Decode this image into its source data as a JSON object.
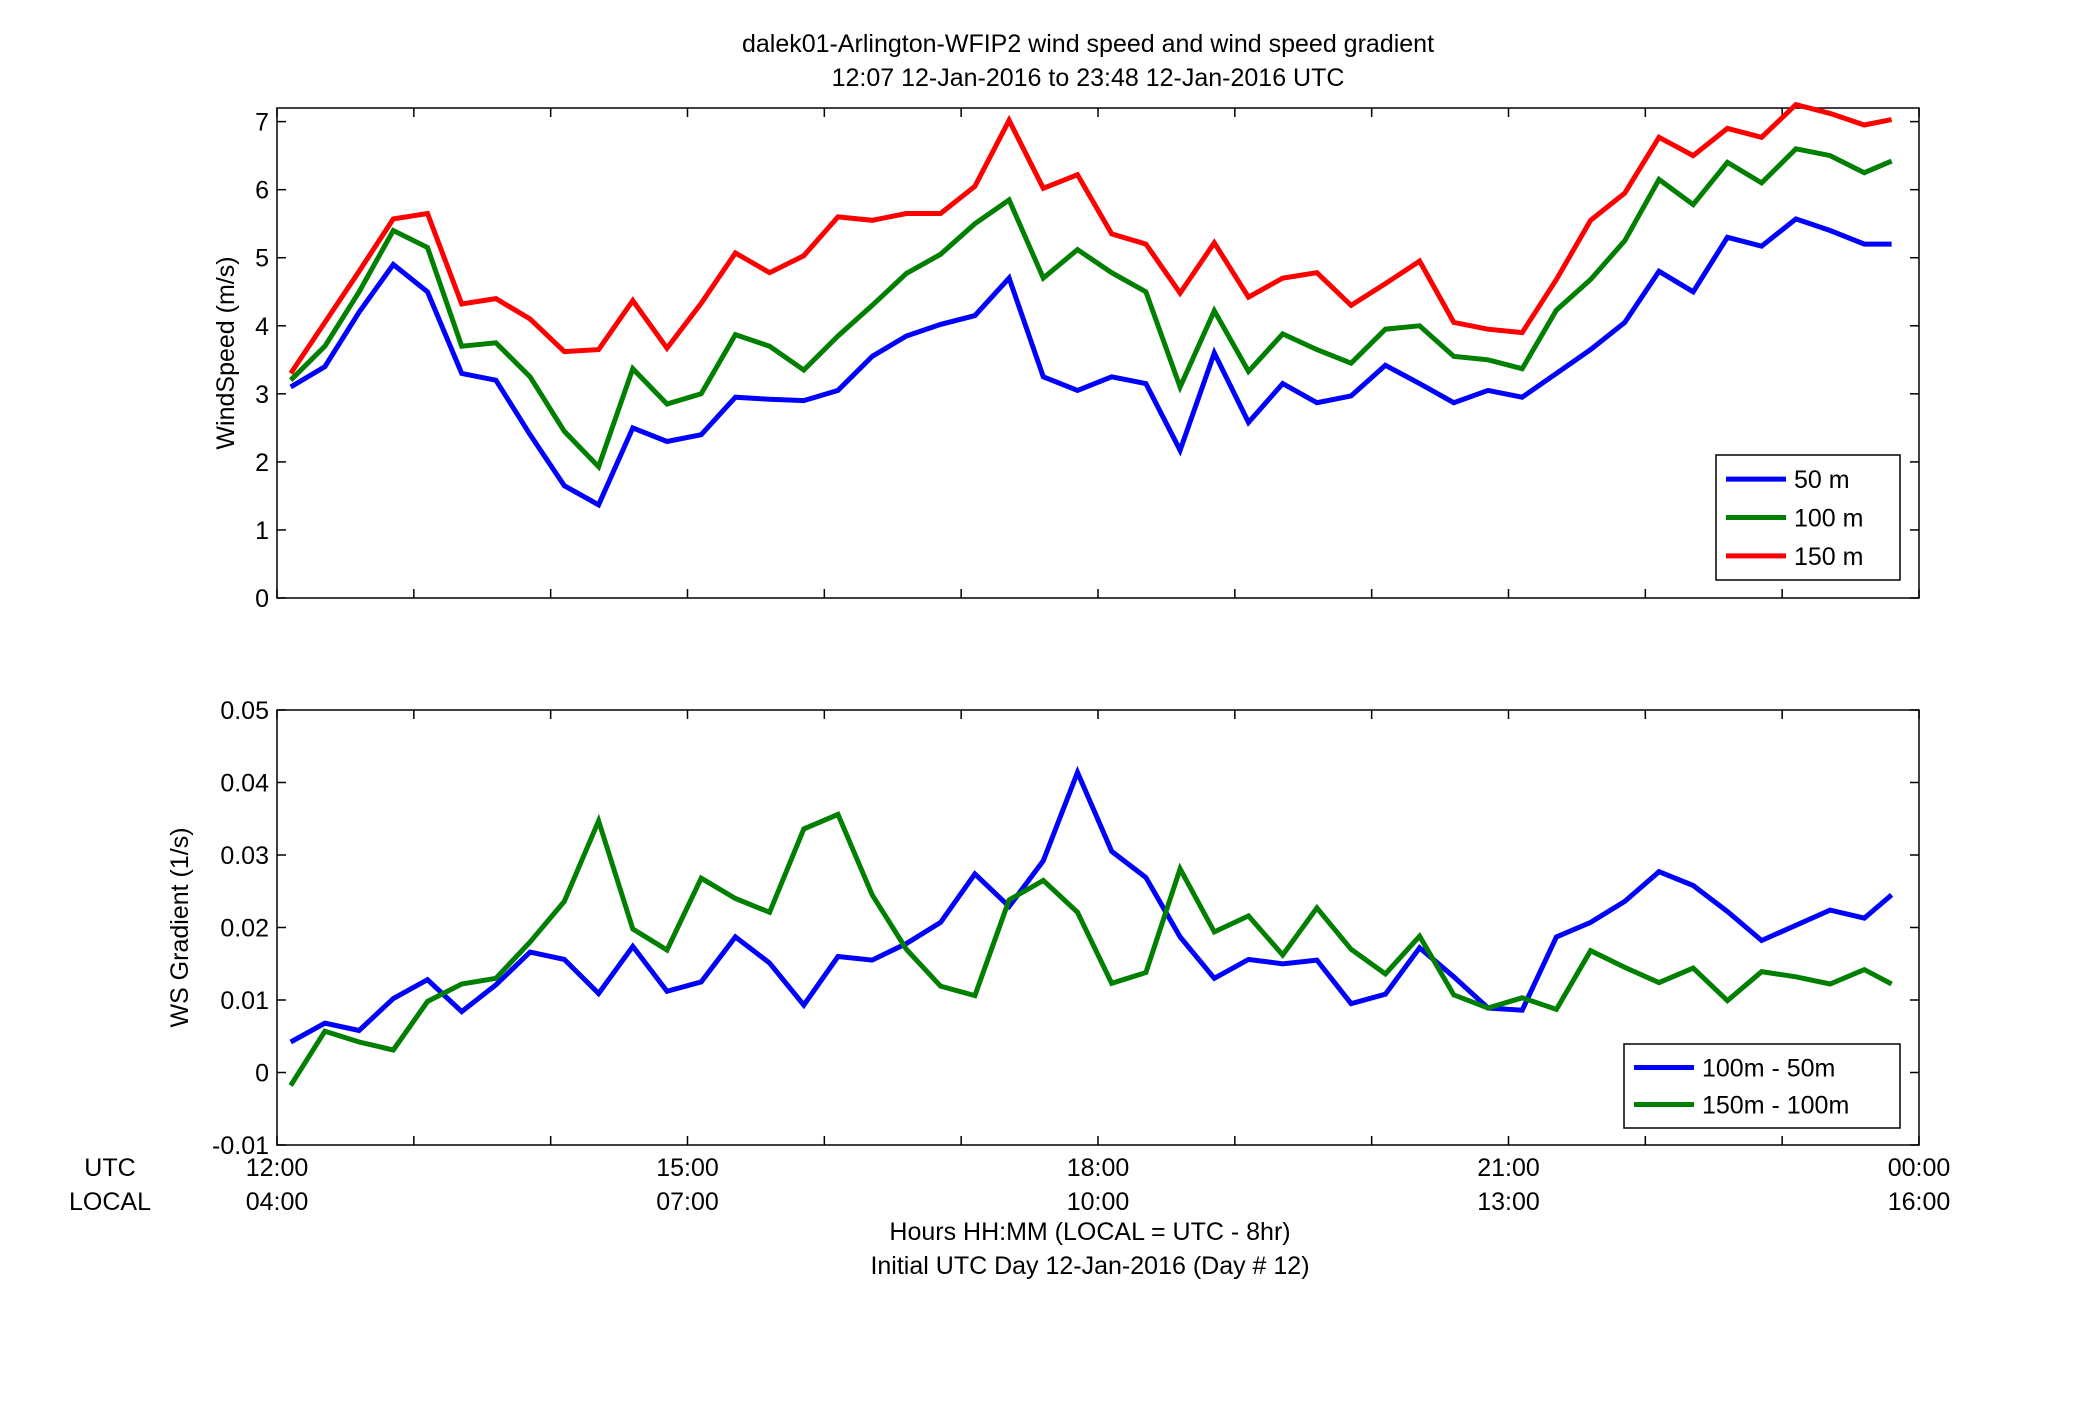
{
  "title_line1": "dalek01-Arlington-WFIP2  wind speed and wind speed gradient",
  "title_line2": "12:07 12-Jan-2016 to 23:48 12-Jan-2016  UTC",
  "bottom_label_utc": "UTC",
  "bottom_label_local": "LOCAL",
  "xlabel_line1": "Hours HH:MM  (LOCAL = UTC - 8hr)",
  "xlabel_line2": "Initial UTC Day 12-Jan-2016 (Day # 12)",
  "x_ticks_utc": [
    "12:00",
    "15:00",
    "18:00",
    "21:00",
    "00:00"
  ],
  "x_ticks_local": [
    "04:00",
    "07:00",
    "10:00",
    "13:00",
    "16:00"
  ],
  "colors": {
    "blue": "#0000ff",
    "green": "#007f00",
    "red": "#ff0000"
  },
  "chart_data": [
    {
      "type": "line",
      "ylabel": "WindSpeed (m/s)",
      "xlim": [
        12.0,
        24.0
      ],
      "ylim": [
        0,
        7.2
      ],
      "y_ticks": [
        0,
        1,
        2,
        3,
        4,
        5,
        6,
        7
      ],
      "x_hours": [
        12.1,
        12.35,
        12.6,
        12.85,
        13.1,
        13.35,
        13.6,
        13.85,
        14.1,
        14.35,
        14.6,
        14.85,
        15.1,
        15.35,
        15.6,
        15.85,
        16.1,
        16.35,
        16.6,
        16.85,
        17.1,
        17.35,
        17.6,
        17.85,
        18.1,
        18.35,
        18.6,
        18.85,
        19.1,
        19.35,
        19.6,
        19.85,
        20.1,
        20.35,
        20.6,
        20.85,
        21.1,
        21.35,
        21.6,
        21.85,
        22.1,
        22.35,
        22.6,
        22.85,
        23.1,
        23.35,
        23.6,
        23.8
      ],
      "legend": "bottom-right",
      "series": [
        {
          "name": "50 m",
          "color": "#0000ff",
          "values": [
            3.1,
            3.4,
            4.2,
            4.9,
            4.5,
            3.3,
            3.2,
            2.4,
            1.65,
            1.37,
            2.5,
            2.3,
            2.4,
            2.95,
            2.92,
            2.9,
            3.05,
            3.55,
            3.85,
            4.02,
            4.15,
            4.7,
            3.25,
            3.05,
            3.25,
            3.15,
            2.17,
            3.6,
            2.58,
            3.15,
            2.87,
            2.97,
            3.42,
            3.15,
            2.87,
            3.05,
            2.95,
            3.3,
            3.65,
            4.05,
            4.8,
            4.5,
            5.3,
            5.17,
            5.57,
            5.4,
            5.2,
            5.2
          ]
        },
        {
          "name": "100 m",
          "color": "#007f00",
          "values": [
            3.2,
            3.7,
            4.5,
            5.4,
            5.15,
            3.7,
            3.75,
            3.25,
            2.45,
            1.93,
            3.37,
            2.85,
            3.0,
            3.87,
            3.7,
            3.35,
            3.85,
            4.3,
            4.77,
            5.05,
            5.5,
            5.85,
            4.7,
            5.12,
            4.78,
            4.5,
            3.1,
            4.22,
            3.33,
            3.88,
            3.65,
            3.45,
            3.95,
            4.0,
            3.55,
            3.5,
            3.37,
            4.23,
            4.68,
            5.25,
            6.15,
            5.78,
            6.4,
            6.1,
            6.6,
            6.5,
            6.25,
            6.42
          ]
        },
        {
          "name": "150 m",
          "color": "#ff0000",
          "values": [
            3.3,
            4.05,
            4.8,
            5.57,
            5.65,
            4.32,
            4.4,
            4.1,
            3.62,
            3.65,
            4.37,
            3.67,
            4.33,
            5.07,
            4.78,
            5.03,
            5.6,
            5.55,
            5.65,
            5.65,
            6.05,
            7.02,
            6.02,
            6.22,
            5.35,
            5.2,
            4.48,
            5.22,
            4.42,
            4.7,
            4.78,
            4.3,
            4.62,
            4.95,
            4.05,
            3.95,
            3.9,
            4.68,
            5.55,
            5.95,
            6.77,
            6.5,
            6.9,
            6.77,
            7.25,
            7.12,
            6.95,
            7.03
          ]
        }
      ]
    },
    {
      "type": "line",
      "ylabel": "WS Gradient (1/s)",
      "xlim": [
        12.0,
        24.0
      ],
      "ylim": [
        -0.01,
        0.05
      ],
      "y_ticks": [
        -0.01,
        0,
        0.01,
        0.02,
        0.03,
        0.04,
        0.05
      ],
      "x_hours": [
        12.1,
        12.35,
        12.6,
        12.85,
        13.1,
        13.35,
        13.6,
        13.85,
        14.1,
        14.35,
        14.6,
        14.85,
        15.1,
        15.35,
        15.6,
        15.85,
        16.1,
        16.35,
        16.6,
        16.85,
        17.1,
        17.35,
        17.6,
        17.85,
        18.1,
        18.35,
        18.6,
        18.85,
        19.1,
        19.35,
        19.6,
        19.85,
        20.1,
        20.35,
        20.6,
        20.85,
        21.1,
        21.35,
        21.6,
        21.85,
        22.1,
        22.35,
        22.6,
        22.85,
        23.1,
        23.35,
        23.6,
        23.8
      ],
      "legend": "bottom-right",
      "series": [
        {
          "name": "100m - 50m",
          "color": "#0000ff",
          "values": [
            0.0042,
            0.0068,
            0.0058,
            0.0102,
            0.0128,
            0.0084,
            0.0121,
            0.0166,
            0.0156,
            0.0109,
            0.0174,
            0.0112,
            0.0125,
            0.0187,
            0.0151,
            0.0093,
            0.016,
            0.0155,
            0.0178,
            0.0207,
            0.0274,
            0.0229,
            0.0292,
            0.0414,
            0.0305,
            0.0269,
            0.0187,
            0.013,
            0.0156,
            0.015,
            0.0155,
            0.0095,
            0.0108,
            0.0172,
            0.0132,
            0.0089,
            0.0086,
            0.0187,
            0.0207,
            0.0236,
            0.0277,
            0.0258,
            0.0222,
            0.0182,
            0.0203,
            0.0224,
            0.0213,
            0.0245
          ]
        },
        {
          "name": "150m - 100m",
          "color": "#007f00",
          "values": [
            -0.0018,
            0.0057,
            0.0042,
            0.0031,
            0.0098,
            0.0122,
            0.013,
            0.018,
            0.0236,
            0.0347,
            0.0198,
            0.0169,
            0.0268,
            0.024,
            0.0221,
            0.0336,
            0.0356,
            0.0245,
            0.017,
            0.0119,
            0.0106,
            0.0238,
            0.0265,
            0.0221,
            0.0123,
            0.0138,
            0.0281,
            0.0194,
            0.0216,
            0.0162,
            0.0227,
            0.017,
            0.0136,
            0.0188,
            0.0107,
            0.0089,
            0.0103,
            0.0087,
            0.0168,
            0.0145,
            0.0124,
            0.0144,
            0.0099,
            0.0139,
            0.0132,
            0.0122,
            0.0142,
            0.0122
          ]
        }
      ]
    }
  ]
}
